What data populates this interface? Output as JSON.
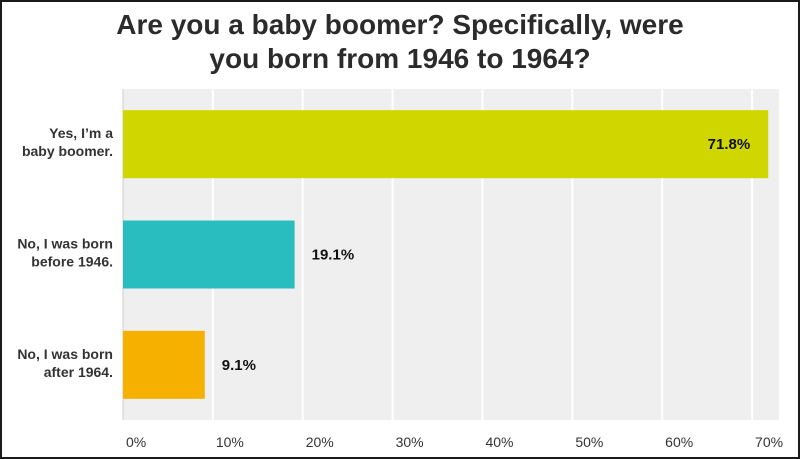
{
  "chart_data": {
    "type": "bar",
    "orientation": "horizontal",
    "title_lines": [
      "Are you a baby boomer? Specifically, were",
      "you born from 1946 to 1964?"
    ],
    "categories": [
      [
        "Yes, I’m a",
        "baby boomer."
      ],
      [
        "No, I was born",
        "before 1946."
      ],
      [
        "No, I was born",
        "after 1964."
      ]
    ],
    "values": [
      71.8,
      19.1,
      9.1
    ],
    "value_labels": [
      "71.8%",
      "19.1%",
      "9.1%"
    ],
    "colors": [
      "#cfd600",
      "#2abdc0",
      "#f5b000"
    ],
    "x_ticks": [
      "0%",
      "10%",
      "20%",
      "30%",
      "40%",
      "50%",
      "60%",
      "70%"
    ],
    "xlim": [
      0,
      73
    ],
    "grid": true,
    "plot_background": "#efefef",
    "grid_color": "#ffffff",
    "value_label_inside": [
      true,
      false,
      false
    ]
  }
}
